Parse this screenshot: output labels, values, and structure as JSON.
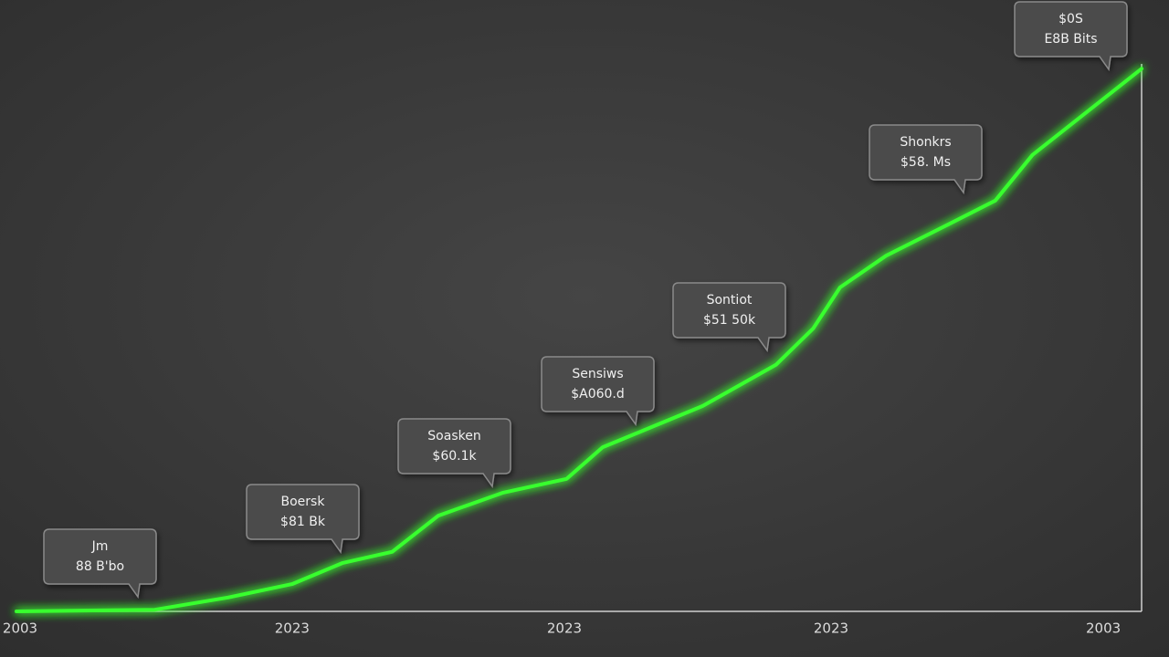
{
  "chart_data": {
    "type": "line",
    "x": [
      0,
      12.3,
      18.8,
      24.5,
      29.0,
      33.4,
      37.5,
      43.2,
      48.9,
      52.1,
      61.0,
      67.5,
      70.8,
      73.2,
      77.3,
      83.0,
      87.0,
      90.3,
      100
    ],
    "series": [
      {
        "color": "#39ff2e",
        "values": [
          0,
          0.3,
          2.5,
          4.9,
          8.7,
          10.7,
          17.2,
          21.3,
          23.8,
          29.5,
          36.9,
          44.3,
          50.8,
          58.2,
          63.9,
          69.7,
          73.8,
          82.0,
          97.5
        ]
      }
    ],
    "xlim": [
      0,
      100
    ],
    "ylim": [
      0,
      100
    ],
    "xticks": [
      {
        "value": 0.2,
        "label": "2003"
      },
      {
        "value": 24.5,
        "label": "2023"
      },
      {
        "value": 48.7,
        "label": "2023"
      },
      {
        "value": 72.4,
        "label": "2023"
      },
      {
        "value": 96.6,
        "label": "2003"
      }
    ],
    "annotations": [
      [
        "Jm",
        "88 B'bo"
      ],
      [
        "Boersk",
        "$81 Bk"
      ],
      [
        "Soasken",
        "$60.1k"
      ],
      [
        "Sensiws",
        "$A060.d"
      ],
      [
        "Sontiot",
        "$51 50k"
      ],
      [
        "Shonkrs",
        "$58. Ms"
      ],
      [
        "$0S",
        "E8B Bits"
      ]
    ]
  }
}
